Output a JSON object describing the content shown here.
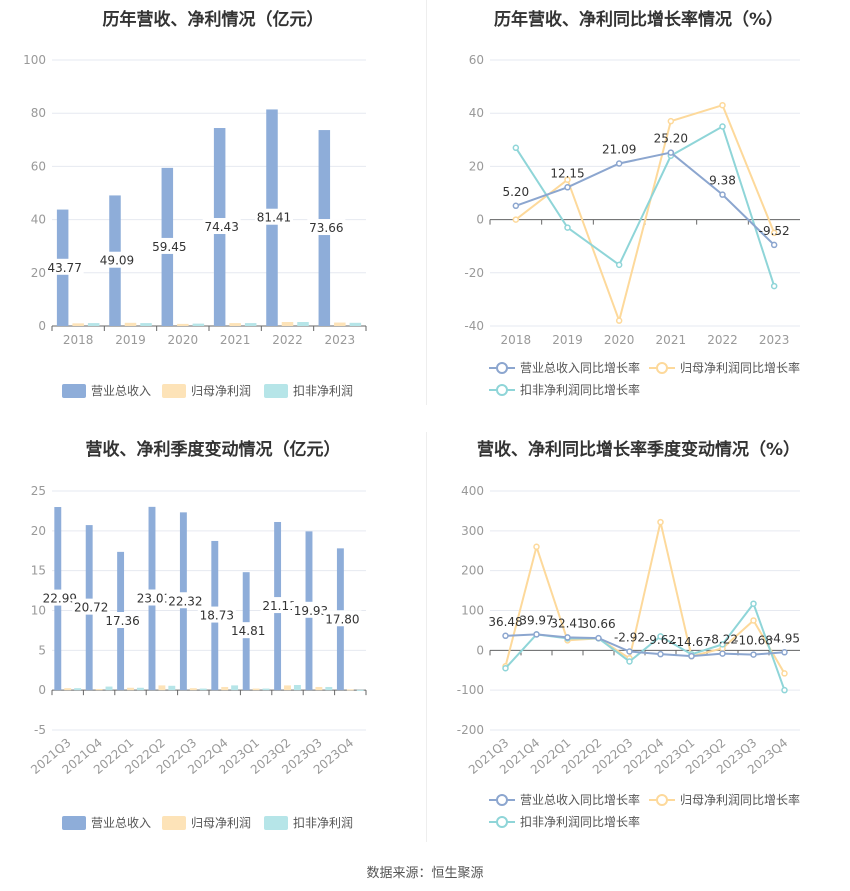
{
  "source_text": "数据来源：恒生聚源",
  "colors": {
    "revenue": "#8eadd9",
    "net_profit": "#fde3b8",
    "deducted_profit": "#b6e5e8",
    "revenue_line": "#8ca6cf",
    "net_profit_line": "#fdd99b",
    "deducted_profit_line": "#8fd5d8",
    "axis_text": "#999999",
    "grid": "#e6e9f0",
    "title": "#333333"
  },
  "chart_data": [
    {
      "type": "bar",
      "title": "历年营收、净利情况（亿元）",
      "categories": [
        "2018",
        "2019",
        "2020",
        "2021",
        "2022",
        "2023"
      ],
      "ylim": [
        0,
        100
      ],
      "yticks": [
        "0",
        "20",
        "40",
        "60",
        "80",
        "100"
      ],
      "series": [
        {
          "name": "营业总收入",
          "values": [
            43.77,
            49.09,
            59.45,
            74.43,
            81.41,
            73.66
          ],
          "labels": [
            "43.77",
            "49.09",
            "59.45",
            "74.43",
            "81.41",
            "73.66"
          ]
        },
        {
          "name": "归母净利润",
          "values": [
            1.0,
            1.2,
            0.8,
            1.1,
            1.5,
            1.3
          ]
        },
        {
          "name": "扣非净利润",
          "values": [
            1.1,
            1.1,
            0.9,
            1.1,
            1.5,
            1.2
          ]
        }
      ],
      "legend_position": "bottom",
      "grid": true
    },
    {
      "type": "line",
      "title": "历年营收、净利同比增长率情况（%）",
      "categories": [
        "2018",
        "2019",
        "2020",
        "2021",
        "2022",
        "2023"
      ],
      "ylim": [
        -40,
        60
      ],
      "yticks": [
        "-40",
        "-20",
        "0",
        "20",
        "40",
        "60"
      ],
      "series": [
        {
          "name": "营业总收入同比增长率",
          "values": [
            5.2,
            12.15,
            21.09,
            25.2,
            9.38,
            -9.52
          ],
          "labels": [
            "5.20",
            "12.15",
            "21.09",
            "25.20",
            "9.38",
            "-9.52"
          ]
        },
        {
          "name": "归母净利润同比增长率",
          "values": [
            0,
            15,
            -38,
            37,
            43,
            -5
          ]
        },
        {
          "name": "扣非净利润同比增长率",
          "values": [
            27,
            -3,
            -17,
            24,
            35,
            -25
          ]
        }
      ],
      "legend_position": "bottom",
      "grid": true
    },
    {
      "type": "bar",
      "title": "营收、净利季度变动情况（亿元）",
      "categories": [
        "2021Q3",
        "2021Q4",
        "2022Q1",
        "2022Q2",
        "2022Q3",
        "2022Q4",
        "2023Q1",
        "2023Q2",
        "2023Q3",
        "2023Q4"
      ],
      "ylim": [
        -5,
        25
      ],
      "yticks": [
        "-5",
        "0",
        "5",
        "10",
        "15",
        "20",
        "25"
      ],
      "series": [
        {
          "name": "营业总收入",
          "values": [
            22.99,
            20.72,
            17.36,
            23.01,
            22.32,
            18.73,
            14.81,
            21.11,
            19.93,
            17.8
          ],
          "labels": [
            "22.99",
            "20.72",
            "17.36",
            "23.01",
            "22.32",
            "18.73",
            "14.81",
            "21.11",
            "19.93",
            "17.80"
          ]
        },
        {
          "name": "归母净利润",
          "values": [
            0.25,
            0.15,
            0.3,
            0.6,
            0.25,
            0.4,
            0.2,
            0.6,
            0.4,
            0.1
          ]
        },
        {
          "name": "扣非净利润",
          "values": [
            0.25,
            0.45,
            0.3,
            0.55,
            0.2,
            0.6,
            0.2,
            0.65,
            0.4,
            0.05
          ]
        }
      ],
      "legend_position": "bottom",
      "grid": true
    },
    {
      "type": "line",
      "title": "营收、净利同比增长率季度变动情况（%）",
      "categories": [
        "2021Q3",
        "2021Q4",
        "2022Q1",
        "2022Q2",
        "2022Q3",
        "2022Q4",
        "2023Q1",
        "2023Q2",
        "2023Q3",
        "2023Q4"
      ],
      "ylim": [
        -200,
        400
      ],
      "yticks": [
        "-200",
        "-100",
        "0",
        "100",
        "200",
        "300",
        "400"
      ],
      "series": [
        {
          "name": "营业总收入同比增长率",
          "values": [
            36.48,
            39.97,
            32.41,
            30.66,
            -2.92,
            -9.62,
            -14.67,
            -8.22,
            -10.68,
            -4.95
          ],
          "labels": [
            "36.48",
            "39.97",
            "32.41",
            "30.66",
            "-2.92",
            "-9.62",
            "-14.67",
            "-8.22",
            "-10.68",
            "-4.95"
          ]
        },
        {
          "name": "归母净利润同比增长率",
          "values": [
            -40,
            260,
            25,
            30,
            -20,
            322,
            -15,
            5,
            75,
            -58
          ]
        },
        {
          "name": "扣非净利润同比增长率",
          "values": [
            -45,
            40,
            30,
            30,
            -28,
            35,
            -10,
            15,
            117,
            -100
          ]
        }
      ],
      "legend_position": "bottom",
      "grid": true
    }
  ]
}
